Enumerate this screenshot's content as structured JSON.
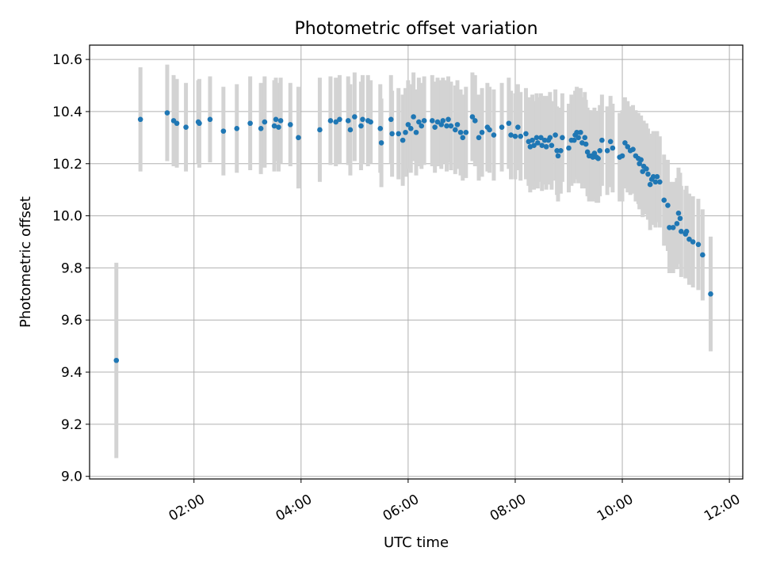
{
  "chart_data": {
    "type": "scatter",
    "title": "Photometric offset variation",
    "xlabel": "UTC time",
    "ylabel": "Photometric offset",
    "x_unit": "hours UTC",
    "xlim": [
      0.05,
      12.25
    ],
    "ylim": [
      8.99,
      10.655
    ],
    "x_ticks": [
      {
        "value": 2,
        "label": "02:00"
      },
      {
        "value": 4,
        "label": "04:00"
      },
      {
        "value": 6,
        "label": "06:00"
      },
      {
        "value": 8,
        "label": "08:00"
      },
      {
        "value": 10,
        "label": "10:00"
      },
      {
        "value": 12,
        "label": "12:00"
      }
    ],
    "y_ticks": [
      {
        "value": 9.0,
        "label": "9.0"
      },
      {
        "value": 9.2,
        "label": "9.2"
      },
      {
        "value": 9.4,
        "label": "9.4"
      },
      {
        "value": 9.6,
        "label": "9.6"
      },
      {
        "value": 9.8,
        "label": "9.8"
      },
      {
        "value": 10.0,
        "label": "10.0"
      },
      {
        "value": 10.2,
        "label": "10.2"
      },
      {
        "value": 10.4,
        "label": "10.4"
      },
      {
        "value": 10.6,
        "label": "10.6"
      }
    ],
    "grid": true,
    "point_color": "#1f77b4",
    "errorbar_color": "#d3d3d3",
    "points": [
      [
        0.55,
        9.445,
        0.375
      ],
      [
        1.0,
        10.37,
        0.2
      ],
      [
        1.5,
        10.395,
        0.185
      ],
      [
        1.62,
        10.365,
        0.175
      ],
      [
        1.68,
        10.355,
        0.17
      ],
      [
        1.85,
        10.34,
        0.17
      ],
      [
        2.1,
        10.355,
        0.17
      ],
      [
        2.08,
        10.36,
        0.16
      ],
      [
        2.3,
        10.37,
        0.165
      ],
      [
        2.55,
        10.325,
        0.17
      ],
      [
        2.8,
        10.335,
        0.17
      ],
      [
        3.05,
        10.355,
        0.18
      ],
      [
        3.25,
        10.335,
        0.175
      ],
      [
        3.32,
        10.36,
        0.175
      ],
      [
        3.5,
        10.345,
        0.175
      ],
      [
        3.53,
        10.37,
        0.16
      ],
      [
        3.58,
        10.34,
        0.17
      ],
      [
        3.62,
        10.365,
        0.165
      ],
      [
        3.8,
        10.35,
        0.16
      ],
      [
        3.95,
        10.3,
        0.195
      ],
      [
        4.35,
        10.33,
        0.2
      ],
      [
        4.55,
        10.365,
        0.17
      ],
      [
        4.65,
        10.36,
        0.17
      ],
      [
        4.72,
        10.37,
        0.17
      ],
      [
        4.88,
        10.365,
        0.17
      ],
      [
        4.92,
        10.33,
        0.175
      ],
      [
        5.0,
        10.38,
        0.17
      ],
      [
        5.12,
        10.345,
        0.17
      ],
      [
        5.15,
        10.37,
        0.17
      ],
      [
        5.25,
        10.365,
        0.175
      ],
      [
        5.3,
        10.36,
        0.16
      ],
      [
        5.48,
        10.335,
        0.17
      ],
      [
        5.5,
        10.28,
        0.17
      ],
      [
        5.68,
        10.37,
        0.17
      ],
      [
        5.7,
        10.315,
        0.165
      ],
      [
        5.82,
        10.315,
        0.175
      ],
      [
        5.9,
        10.29,
        0.175
      ],
      [
        5.95,
        10.32,
        0.17
      ],
      [
        6.0,
        10.35,
        0.17
      ],
      [
        6.05,
        10.335,
        0.17
      ],
      [
        6.1,
        10.38,
        0.17
      ],
      [
        6.15,
        10.32,
        0.165
      ],
      [
        6.2,
        10.36,
        0.17
      ],
      [
        6.25,
        10.345,
        0.165
      ],
      [
        6.3,
        10.365,
        0.17
      ],
      [
        6.45,
        10.365,
        0.175
      ],
      [
        6.5,
        10.34,
        0.175
      ],
      [
        6.55,
        10.36,
        0.17
      ],
      [
        6.62,
        10.35,
        0.17
      ],
      [
        6.65,
        10.365,
        0.165
      ],
      [
        6.72,
        10.345,
        0.175
      ],
      [
        6.75,
        10.37,
        0.165
      ],
      [
        6.8,
        10.345,
        0.17
      ],
      [
        6.88,
        10.33,
        0.17
      ],
      [
        6.92,
        10.35,
        0.17
      ],
      [
        6.98,
        10.32,
        0.165
      ],
      [
        7.02,
        10.3,
        0.165
      ],
      [
        7.08,
        10.32,
        0.175
      ],
      [
        7.2,
        10.38,
        0.17
      ],
      [
        7.25,
        10.365,
        0.175
      ],
      [
        7.32,
        10.3,
        0.165
      ],
      [
        7.38,
        10.32,
        0.17
      ],
      [
        7.48,
        10.34,
        0.17
      ],
      [
        7.52,
        10.33,
        0.165
      ],
      [
        7.6,
        10.31,
        0.175
      ],
      [
        7.75,
        10.34,
        0.17
      ],
      [
        7.88,
        10.355,
        0.175
      ],
      [
        7.92,
        10.31,
        0.17
      ],
      [
        8.0,
        10.305,
        0.165
      ],
      [
        8.05,
        10.34,
        0.165
      ],
      [
        8.1,
        10.305,
        0.17
      ],
      [
        8.2,
        10.315,
        0.175
      ],
      [
        8.25,
        10.285,
        0.17
      ],
      [
        8.28,
        10.265,
        0.175
      ],
      [
        8.32,
        10.29,
        0.175
      ],
      [
        8.35,
        10.27,
        0.17
      ],
      [
        8.4,
        10.3,
        0.17
      ],
      [
        8.42,
        10.28,
        0.175
      ],
      [
        8.48,
        10.3,
        0.17
      ],
      [
        8.5,
        10.27,
        0.175
      ],
      [
        8.55,
        10.29,
        0.17
      ],
      [
        8.58,
        10.265,
        0.165
      ],
      [
        8.62,
        10.29,
        0.17
      ],
      [
        8.65,
        10.3,
        0.175
      ],
      [
        8.68,
        10.27,
        0.17
      ],
      [
        8.75,
        10.31,
        0.175
      ],
      [
        8.78,
        10.25,
        0.17
      ],
      [
        8.8,
        10.23,
        0.175
      ],
      [
        8.85,
        10.25,
        0.165
      ],
      [
        8.88,
        10.3,
        0.17
      ],
      [
        9.0,
        10.26,
        0.17
      ],
      [
        9.05,
        10.29,
        0.175
      ],
      [
        9.1,
        10.29,
        0.165
      ],
      [
        9.12,
        10.31,
        0.17
      ],
      [
        9.15,
        10.32,
        0.175
      ],
      [
        9.18,
        10.3,
        0.175
      ],
      [
        9.22,
        10.32,
        0.17
      ],
      [
        9.25,
        10.28,
        0.175
      ],
      [
        9.3,
        10.3,
        0.175
      ],
      [
        9.32,
        10.275,
        0.17
      ],
      [
        9.35,
        10.245,
        0.17
      ],
      [
        9.38,
        10.23,
        0.175
      ],
      [
        9.42,
        10.23,
        0.175
      ],
      [
        9.45,
        10.225,
        0.17
      ],
      [
        9.48,
        10.24,
        0.175
      ],
      [
        9.52,
        10.225,
        0.175
      ],
      [
        9.55,
        10.22,
        0.17
      ],
      [
        9.58,
        10.25,
        0.175
      ],
      [
        9.62,
        10.29,
        0.175
      ],
      [
        9.72,
        10.25,
        0.17
      ],
      [
        9.78,
        10.285,
        0.175
      ],
      [
        9.82,
        10.26,
        0.17
      ],
      [
        9.95,
        10.225,
        0.17
      ],
      [
        10.0,
        10.23,
        0.175
      ],
      [
        10.05,
        10.28,
        0.175
      ],
      [
        10.1,
        10.265,
        0.175
      ],
      [
        10.15,
        10.25,
        0.17
      ],
      [
        10.2,
        10.255,
        0.17
      ],
      [
        10.25,
        10.23,
        0.175
      ],
      [
        10.3,
        10.22,
        0.175
      ],
      [
        10.32,
        10.2,
        0.175
      ],
      [
        10.35,
        10.215,
        0.17
      ],
      [
        10.38,
        10.17,
        0.175
      ],
      [
        10.4,
        10.19,
        0.175
      ],
      [
        10.45,
        10.18,
        0.175
      ],
      [
        10.48,
        10.16,
        0.175
      ],
      [
        10.52,
        10.12,
        0.175
      ],
      [
        10.55,
        10.14,
        0.175
      ],
      [
        10.58,
        10.15,
        0.175
      ],
      [
        10.62,
        10.13,
        0.175
      ],
      [
        10.65,
        10.15,
        0.175
      ],
      [
        10.7,
        10.13,
        0.175
      ],
      [
        10.78,
        10.06,
        0.175
      ],
      [
        10.85,
        10.04,
        0.175
      ],
      [
        10.88,
        9.955,
        0.175
      ],
      [
        10.95,
        9.955,
        0.175
      ],
      [
        11.02,
        9.97,
        0.175
      ],
      [
        11.05,
        10.01,
        0.175
      ],
      [
        11.08,
        9.99,
        0.175
      ],
      [
        11.1,
        9.94,
        0.175
      ],
      [
        11.18,
        9.93,
        0.17
      ],
      [
        11.2,
        9.94,
        0.175
      ],
      [
        11.25,
        9.91,
        0.175
      ],
      [
        11.32,
        9.9,
        0.175
      ],
      [
        11.42,
        9.89,
        0.175
      ],
      [
        11.5,
        9.85,
        0.175
      ],
      [
        11.65,
        9.7,
        0.22
      ]
    ]
  }
}
